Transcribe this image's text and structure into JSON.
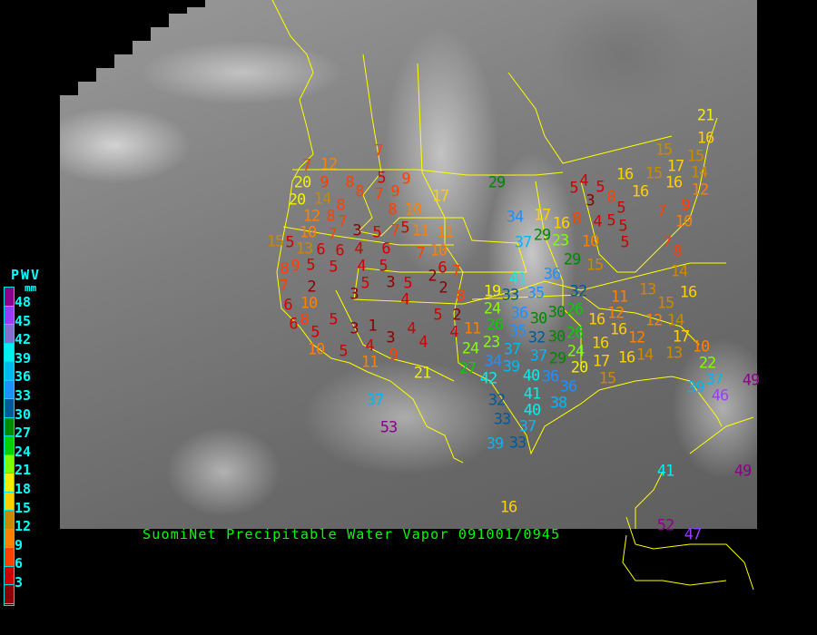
{
  "caption": "SuomiNet Precipitable Water Vapor 091001/0945",
  "legend": {
    "title": "PWV",
    "unit": "mm",
    "labels": [
      "48",
      "45",
      "42",
      "39",
      "36",
      "33",
      "30",
      "27",
      "24",
      "21",
      "18",
      "15",
      "12",
      "9",
      "6",
      "3"
    ],
    "colors": [
      "#8c008c",
      "#9a3cff",
      "#8070d0",
      "#00f0f0",
      "#00b8f0",
      "#1e90ff",
      "#005a9a",
      "#008800",
      "#00d000",
      "#80ff00",
      "#f0f000",
      "#ffd000",
      "#cc8800",
      "#ff8000",
      "#ff4000",
      "#d00000",
      "#8b0000"
    ]
  },
  "border_color": "#ffff00",
  "stations": [
    "7",
    "7",
    "12",
    "20",
    "9",
    "8",
    "5",
    "9",
    "20",
    "14",
    "8",
    "7",
    "9",
    "17",
    "12",
    "8",
    "8",
    "8",
    "10",
    "5",
    "7",
    "10",
    "7",
    "3",
    "5",
    "7",
    "11",
    "11",
    "15",
    "5",
    "13",
    "6",
    "6",
    "4",
    "6",
    "9",
    "7",
    "10",
    "6",
    "7",
    "8",
    "5",
    "5",
    "4",
    "5",
    "7",
    "5",
    "3",
    "5",
    "2",
    "2",
    "3",
    "4",
    "2",
    "8",
    "6",
    "10",
    "8",
    "6",
    "5",
    "1",
    "5",
    "2",
    "5",
    "3",
    "3",
    "4",
    "4",
    "11",
    "10",
    "5",
    "4",
    "4",
    "9",
    "11",
    "29",
    "5",
    "4",
    "5",
    "3",
    "8",
    "5",
    "5",
    "5",
    "5",
    "16",
    "15",
    "16",
    "17",
    "16",
    "34",
    "17",
    "16",
    "8",
    "4",
    "7",
    "9",
    "10",
    "12",
    "29",
    "23",
    "37",
    "10",
    "7",
    "8",
    "29",
    "15",
    "36",
    "41",
    "14",
    "19",
    "33",
    "35",
    "32",
    "13",
    "16",
    "24",
    "36",
    "26",
    "11",
    "12",
    "15",
    "26",
    "30",
    "30",
    "16",
    "12",
    "14",
    "35",
    "16",
    "23",
    "37",
    "34",
    "32",
    "30",
    "26",
    "16",
    "12",
    "17",
    "24",
    "24",
    "39",
    "37",
    "29",
    "20",
    "17",
    "16",
    "14",
    "13",
    "10",
    "22",
    "27",
    "42",
    "40",
    "36",
    "15",
    "37",
    "21",
    "41",
    "36",
    "38",
    "37",
    "32",
    "40",
    "33",
    "37",
    "53",
    "33",
    "39",
    "21",
    "16",
    "15",
    "15",
    "14",
    "39",
    "46",
    "49",
    "41",
    "49",
    "52",
    "47",
    "16"
  ]
}
